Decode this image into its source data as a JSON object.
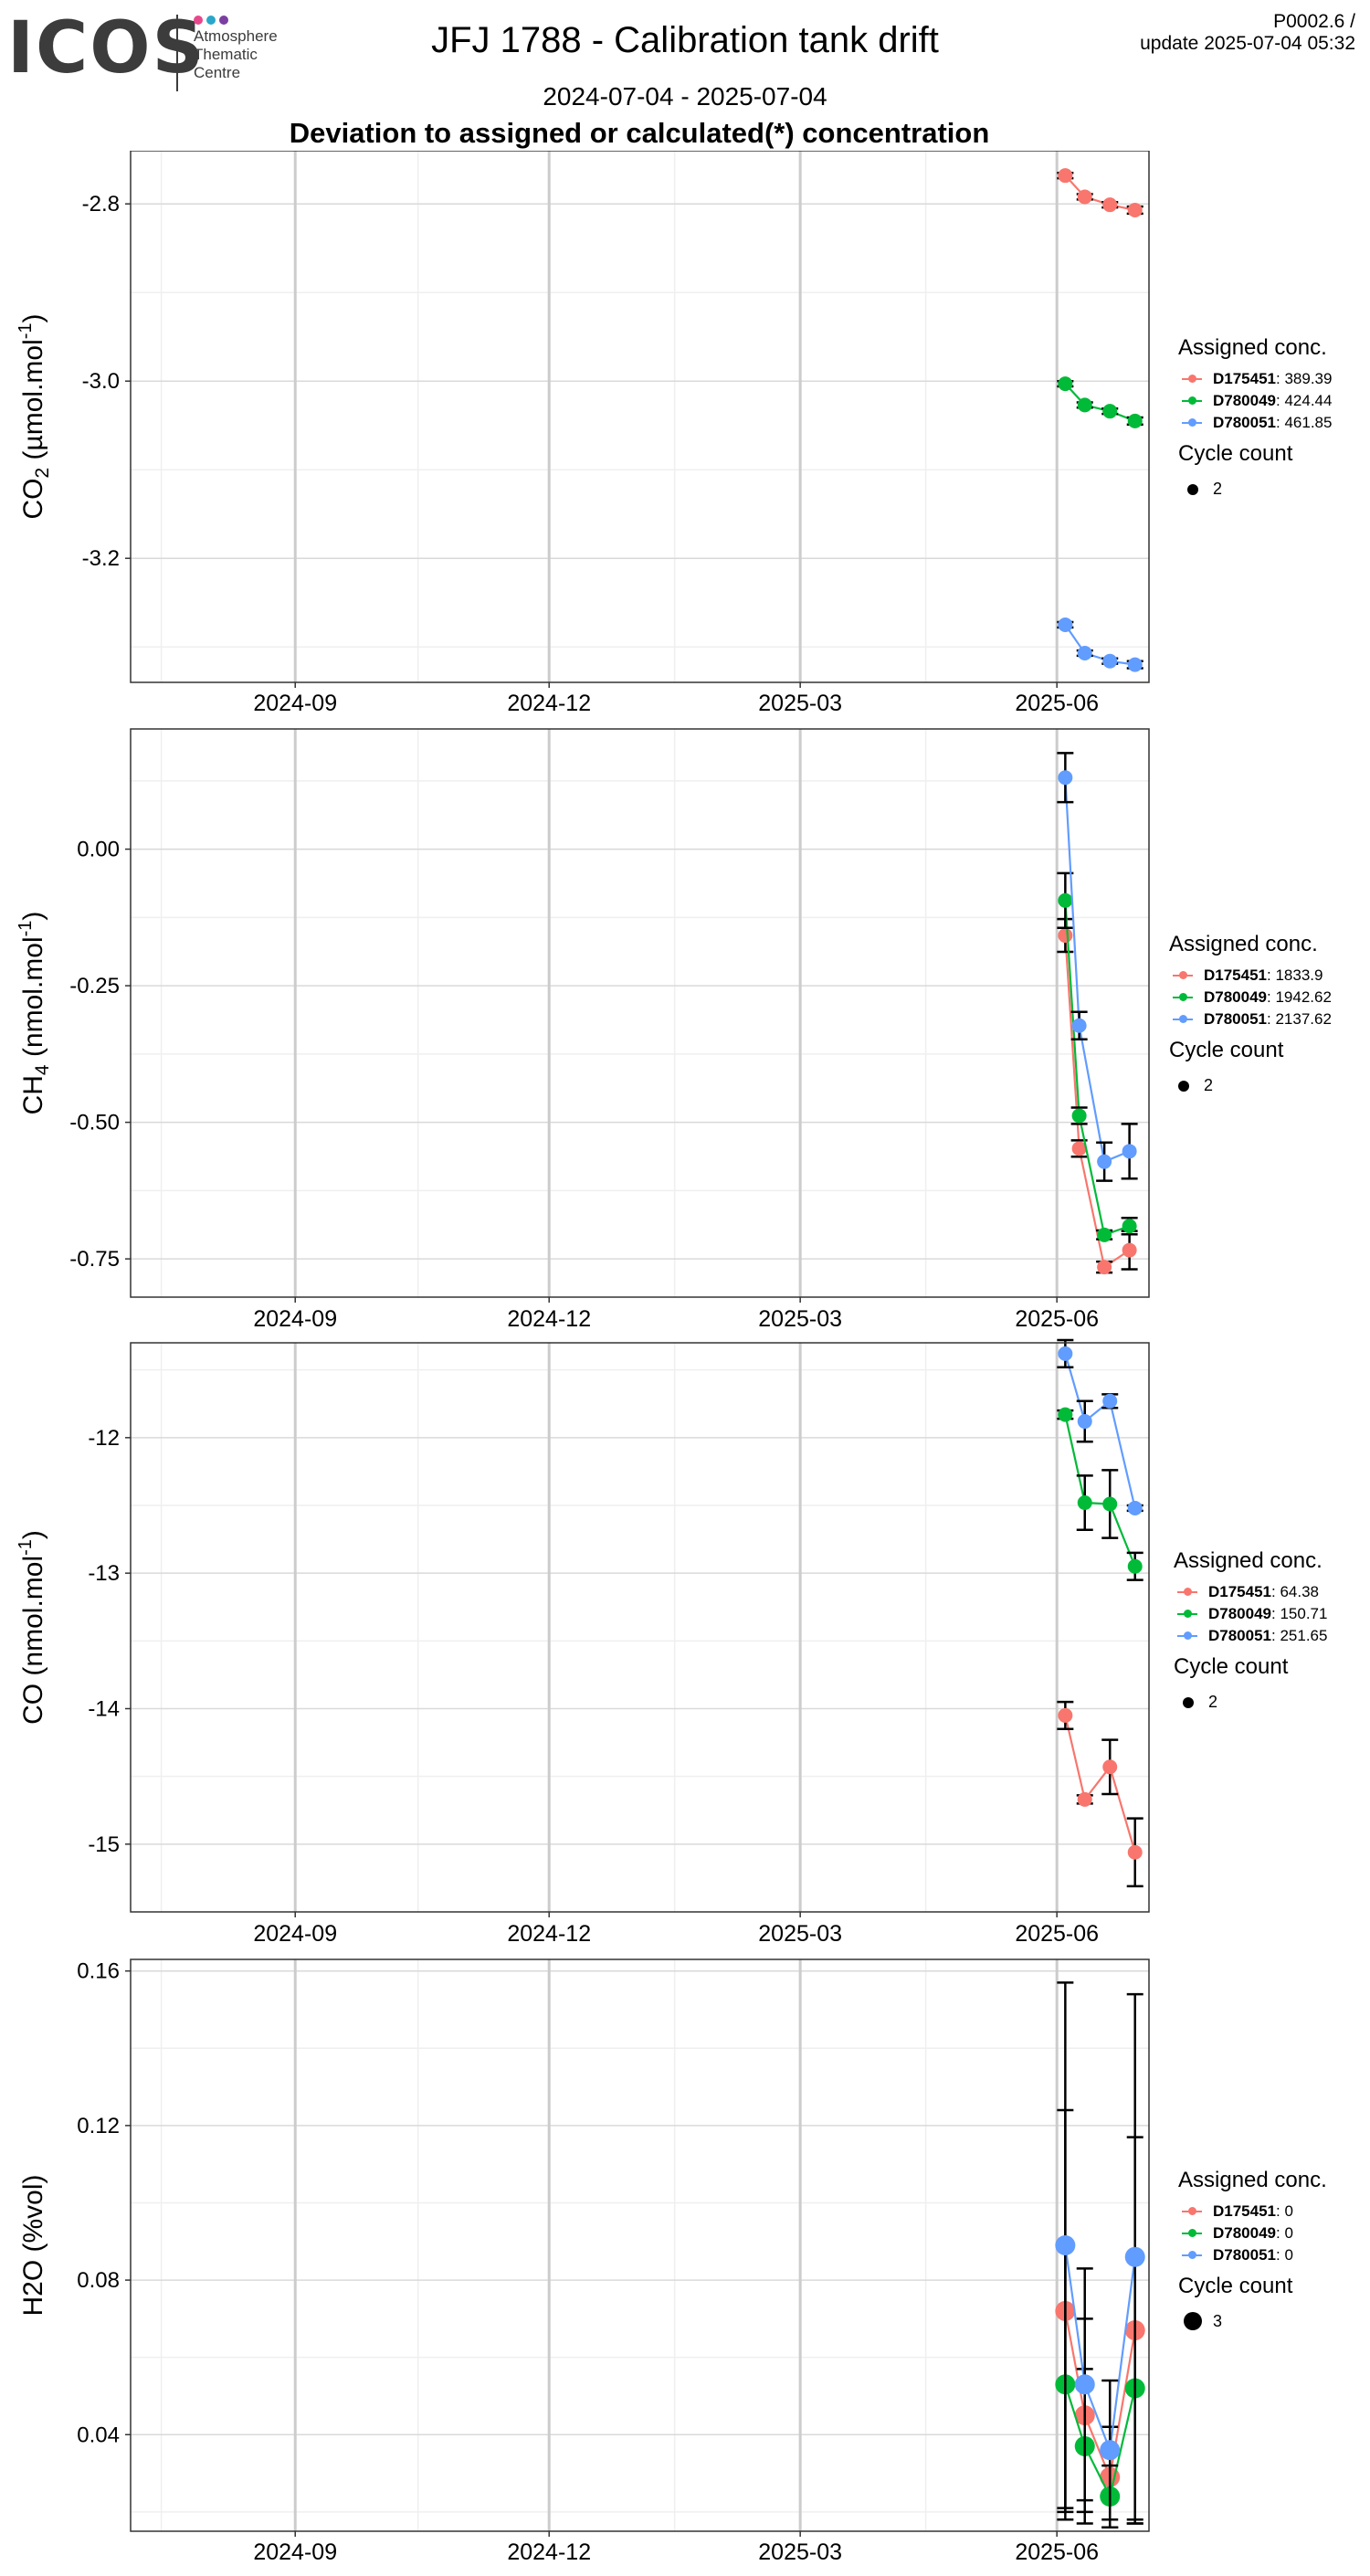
{
  "header": {
    "logo_text": "ICOS",
    "logo_sub": [
      "Atmosphere",
      "Thematic",
      "Centre"
    ],
    "title": "JFJ 1788 - Calibration tank drift",
    "period": "2024-07-04 - 2025-07-04",
    "subtitle": "Deviation to assigned or calculated(*) concentration",
    "version": "P0002.6 /",
    "update": "update  2025-07-04 05:32",
    "logo_colors": [
      "#e8478b",
      "#2aa6c9",
      "#7a3fa0"
    ]
  },
  "colors": {
    "D175451": "#F8766D",
    "D780049": "#00BA38",
    "D780051": "#619CFF",
    "errorbar": "#000000",
    "grid_major": "#d9d9d9",
    "grid_minor": "#efefef",
    "date_line": "#cccccc"
  },
  "chart_data": [
    {
      "type": "line",
      "ylabel": "CO2 (µmol.mol-1)",
      "ylim": [
        -3.34,
        -2.74
      ],
      "yticks": [
        -2.8,
        -3.0,
        -3.2
      ],
      "ytick_labels": [
        "-2.8",
        "-3.0",
        "-3.2"
      ],
      "xticks": [
        "2024-09-01",
        "2024-12-01",
        "2025-03-01",
        "2025-06-01"
      ],
      "xtick_labels": [
        "2024-09",
        "2024-12",
        "2025-03",
        "2025-06"
      ],
      "x": [
        "2025-06-04",
        "2025-06-11",
        "2025-06-20",
        "2025-06-29"
      ],
      "legend_title": "Assigned conc.",
      "series": [
        {
          "name": "D175451",
          "conc": "389.39",
          "values": [
            -2.768,
            -2.792,
            -2.801,
            -2.807
          ],
          "err": [
            0.003,
            0.003,
            0.003,
            0.004
          ]
        },
        {
          "name": "D780049",
          "conc": "424.44",
          "values": [
            -3.003,
            -3.027,
            -3.034,
            -3.045
          ],
          "err": [
            0.003,
            0.003,
            0.003,
            0.004
          ]
        },
        {
          "name": "D780051",
          "conc": "461.85",
          "values": [
            -3.275,
            -3.307,
            -3.316,
            -3.32
          ],
          "err": [
            0.003,
            0.003,
            0.003,
            0.004
          ]
        }
      ],
      "cycle_title": "Cycle count",
      "cycle_count": "2",
      "grid": true
    },
    {
      "type": "line",
      "ylabel": "CH4 (nmol.mol-1)",
      "ylim": [
        -0.82,
        0.22
      ],
      "yticks": [
        0.0,
        -0.25,
        -0.5,
        -0.75
      ],
      "ytick_labels": [
        "0.00",
        "-0.25",
        "-0.50",
        "-0.75"
      ],
      "xticks": [
        "2024-09-01",
        "2024-12-01",
        "2025-03-01",
        "2025-06-01"
      ],
      "xtick_labels": [
        "2024-09",
        "2024-12",
        "2025-03",
        "2025-06"
      ],
      "x": [
        "2025-06-04",
        "2025-06-09",
        "2025-06-18",
        "2025-06-27"
      ],
      "legend_title": "Assigned conc.",
      "series": [
        {
          "name": "D175451",
          "conc": "1833.9",
          "values": [
            -0.158,
            -0.548,
            -0.765,
            -0.734
          ],
          "err": [
            0.03,
            0.015,
            0.01,
            0.035
          ]
        },
        {
          "name": "D780049",
          "conc": "1942.62",
          "values": [
            -0.094,
            -0.488,
            -0.706,
            -0.69
          ],
          "err": [
            0.05,
            0.015,
            0.008,
            0.015
          ]
        },
        {
          "name": "D780051",
          "conc": "2137.62",
          "values": [
            0.131,
            -0.323,
            -0.572,
            -0.553
          ],
          "err": [
            0.045,
            0.025,
            0.035,
            0.05
          ]
        }
      ],
      "cycle_title": "Cycle count",
      "cycle_count": "2",
      "grid": true
    },
    {
      "type": "line",
      "ylabel": "CO (nmol.mol-1)",
      "ylim": [
        -15.5,
        -11.3
      ],
      "yticks": [
        -12,
        -13,
        -14,
        -15
      ],
      "ytick_labels": [
        "-12",
        "-13",
        "-14",
        "-15"
      ],
      "xticks": [
        "2024-09-01",
        "2024-12-01",
        "2025-03-01",
        "2025-06-01"
      ],
      "xtick_labels": [
        "2024-09",
        "2024-12",
        "2025-03",
        "2025-06"
      ],
      "x": [
        "2025-06-04",
        "2025-06-11",
        "2025-06-20",
        "2025-06-29"
      ],
      "legend_title": "Assigned conc.",
      "series": [
        {
          "name": "D175451",
          "conc": "64.38",
          "values": [
            -14.05,
            -14.67,
            -14.43,
            -15.06
          ],
          "err": [
            0.1,
            0.03,
            0.2,
            0.25
          ]
        },
        {
          "name": "D780049",
          "conc": "150.71",
          "values": [
            -11.83,
            -12.48,
            -12.49,
            -12.95
          ],
          "err": [
            0.03,
            0.2,
            0.25,
            0.1
          ]
        },
        {
          "name": "D780051",
          "conc": "251.65",
          "values": [
            -11.38,
            -11.88,
            -11.73,
            -12.52
          ],
          "err": [
            0.1,
            0.15,
            0.05,
            0.02
          ]
        }
      ],
      "cycle_title": "Cycle count",
      "cycle_count": "2",
      "grid": true
    },
    {
      "type": "line",
      "ylabel": "H2O (%vol)",
      "ylim": [
        0.015,
        0.163
      ],
      "yticks": [
        0.04,
        0.08,
        0.12,
        0.16
      ],
      "ytick_labels": [
        "0.04",
        "0.08",
        "0.12",
        "0.16"
      ],
      "xticks": [
        "2024-09-01",
        "2024-12-01",
        "2025-03-01",
        "2025-06-01"
      ],
      "xtick_labels": [
        "2024-09",
        "2024-12",
        "2025-03",
        "2025-06"
      ],
      "x": [
        "2025-06-04",
        "2025-06-11",
        "2025-06-20",
        "2025-06-29"
      ],
      "legend_title": "Assigned conc.",
      "series": [
        {
          "name": "D175451",
          "conc": "0",
          "values": [
            0.072,
            0.045,
            0.029,
            0.067
          ],
          "err": [
            0.052,
            0.025,
            0.013,
            0.05
          ]
        },
        {
          "name": "D780049",
          "conc": "0",
          "values": [
            0.053,
            0.037,
            0.024,
            0.052
          ],
          "err": [
            0.035,
            0.02,
            0.008,
            0.035
          ]
        },
        {
          "name": "D780051",
          "conc": "0",
          "values": [
            0.089,
            0.053,
            0.036,
            0.086
          ],
          "err": [
            0.068,
            0.03,
            0.018,
            0.068
          ]
        }
      ],
      "cycle_title": "Cycle count",
      "cycle_count": "3",
      "grid": true
    }
  ]
}
